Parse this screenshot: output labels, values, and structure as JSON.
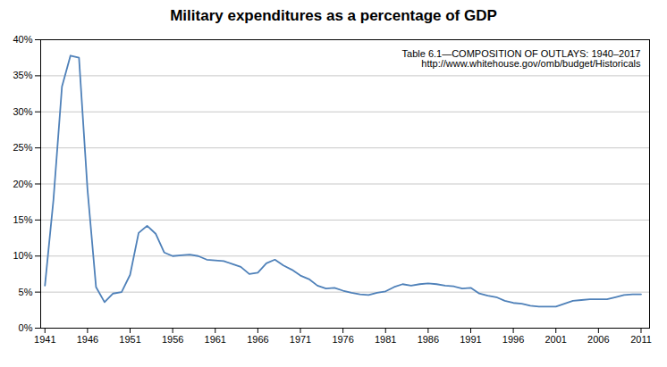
{
  "chart_data": {
    "type": "line",
    "title": "Military expenditures as a percentage of GDP",
    "annotation": "Table 6.1—COMPOSITION OF OUTLAYS: 1940–2017\nhttp://www.whitehouse.gov/omb/budget/Historicals",
    "color": "#4f81b9",
    "x": [
      1941,
      1942,
      1943,
      1944,
      1945,
      1946,
      1947,
      1948,
      1949,
      1950,
      1951,
      1952,
      1953,
      1954,
      1955,
      1956,
      1957,
      1958,
      1959,
      1960,
      1961,
      1962,
      1963,
      1964,
      1965,
      1966,
      1967,
      1968,
      1969,
      1970,
      1971,
      1972,
      1973,
      1974,
      1975,
      1976,
      1977,
      1978,
      1979,
      1980,
      1981,
      1982,
      1983,
      1984,
      1985,
      1986,
      1987,
      1988,
      1989,
      1990,
      1991,
      1992,
      1993,
      1994,
      1995,
      1996,
      1997,
      1998,
      1999,
      2000,
      2001,
      2002,
      2003,
      2004,
      2005,
      2006,
      2007,
      2008,
      2009,
      2010,
      2011
    ],
    "values": [
      5.9,
      17.8,
      33.5,
      37.8,
      37.5,
      19.2,
      5.7,
      3.6,
      4.8,
      5.0,
      7.4,
      13.2,
      14.2,
      13.1,
      10.5,
      10.0,
      10.1,
      10.2,
      10.0,
      9.5,
      9.4,
      9.3,
      8.9,
      8.5,
      7.5,
      7.7,
      9.0,
      9.5,
      8.7,
      8.1,
      7.3,
      6.8,
      5.9,
      5.5,
      5.6,
      5.2,
      4.9,
      4.7,
      4.6,
      4.9,
      5.1,
      5.7,
      6.1,
      5.9,
      6.1,
      6.2,
      6.1,
      5.9,
      5.8,
      5.5,
      5.6,
      4.8,
      4.5,
      4.3,
      3.8,
      3.5,
      3.4,
      3.1,
      3.0,
      3.0,
      3.0,
      3.4,
      3.8,
      3.9,
      4.0,
      4.0,
      4.0,
      4.3,
      4.6,
      4.7,
      4.7
    ],
    "xlim": [
      1940.5,
      2012
    ],
    "ylim": [
      0,
      40
    ],
    "xticks": [
      1941,
      1946,
      1951,
      1956,
      1961,
      1966,
      1971,
      1976,
      1981,
      1986,
      1991,
      1996,
      2001,
      2006,
      2011
    ],
    "yticks": [
      {
        "value": 0,
        "label": "0%"
      },
      {
        "value": 5,
        "label": "5%"
      },
      {
        "value": 10,
        "label": "10%"
      },
      {
        "value": 15,
        "label": "15%"
      },
      {
        "value": 20,
        "label": "20%"
      },
      {
        "value": 25,
        "label": "25%"
      },
      {
        "value": 30,
        "label": "30%"
      },
      {
        "value": 35,
        "label": "35%"
      },
      {
        "value": 40,
        "label": "40%"
      }
    ],
    "grid": "y"
  }
}
